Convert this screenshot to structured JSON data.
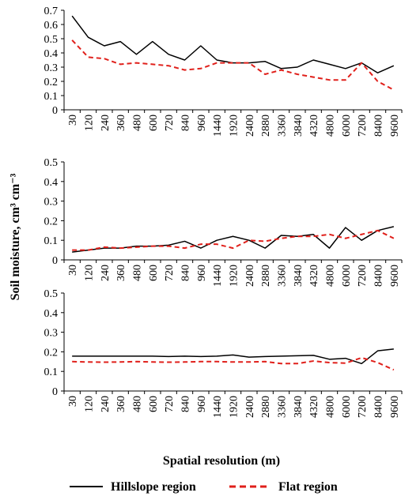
{
  "ylabel": "Soil moisture, cm³ cm⁻³",
  "xlabel": "Spatial resolution (m)",
  "legend": {
    "position": "bottom",
    "items": [
      {
        "name": "Hillslope region",
        "color": "#000000",
        "dash": "solid"
      },
      {
        "name": "Flat region",
        "color": "#e0201b",
        "dash": "dashed"
      }
    ]
  },
  "chart_data": [
    {
      "type": "line",
      "categories": [
        "30",
        "120",
        "240",
        "360",
        "480",
        "600",
        "720",
        "840",
        "960",
        "1440",
        "1920",
        "2400",
        "2880",
        "3360",
        "3840",
        "4320",
        "4800",
        "6000",
        "7200",
        "8400",
        "9600"
      ],
      "yticks": [
        "0",
        "0.1",
        "0.2",
        "0.3",
        "0.4",
        "0.5",
        "0.6",
        "0.7"
      ],
      "ylim": [
        0,
        0.7
      ],
      "grid": false,
      "series": [
        {
          "name": "Hillslope region",
          "color": "#000000",
          "dash": "solid",
          "values": [
            0.66,
            0.51,
            0.45,
            0.48,
            0.39,
            0.48,
            0.39,
            0.35,
            0.45,
            0.35,
            0.33,
            0.33,
            0.34,
            0.29,
            0.3,
            0.35,
            0.32,
            0.29,
            0.33,
            0.26,
            0.31
          ]
        },
        {
          "name": "Flat region",
          "color": "#e0201b",
          "dash": "dashed",
          "values": [
            0.49,
            0.37,
            0.36,
            0.32,
            0.33,
            0.32,
            0.31,
            0.28,
            0.29,
            0.33,
            0.33,
            0.33,
            0.25,
            0.28,
            0.25,
            0.23,
            0.21,
            0.21,
            0.33,
            0.2,
            0.14
          ]
        }
      ]
    },
    {
      "type": "line",
      "categories": [
        "30",
        "120",
        "240",
        "360",
        "480",
        "600",
        "720",
        "840",
        "960",
        "1440",
        "1920",
        "2400",
        "2880",
        "3360",
        "3840",
        "4320",
        "4800",
        "6000",
        "7200",
        "8400",
        "9600"
      ],
      "yticks": [
        "0",
        "0.1",
        "0.2",
        "0.3",
        "0.4",
        "0.5"
      ],
      "ylim": [
        0,
        0.5
      ],
      "grid": false,
      "series": [
        {
          "name": "Hillslope region",
          "color": "#000000",
          "dash": "solid",
          "values": [
            0.04,
            0.05,
            0.06,
            0.06,
            0.07,
            0.07,
            0.075,
            0.095,
            0.06,
            0.1,
            0.12,
            0.1,
            0.06,
            0.125,
            0.12,
            0.13,
            0.06,
            0.165,
            0.1,
            0.15,
            0.17
          ]
        },
        {
          "name": "Flat region",
          "color": "#e0201b",
          "dash": "dashed",
          "values": [
            0.05,
            0.05,
            0.065,
            0.06,
            0.065,
            0.07,
            0.07,
            0.06,
            0.08,
            0.08,
            0.06,
            0.1,
            0.095,
            0.11,
            0.12,
            0.12,
            0.13,
            0.11,
            0.13,
            0.15,
            0.11
          ]
        }
      ]
    },
    {
      "type": "line",
      "categories": [
        "30",
        "120",
        "240",
        "360",
        "480",
        "600",
        "720",
        "840",
        "960",
        "1440",
        "1920",
        "2400",
        "2880",
        "3360",
        "3840",
        "4320",
        "4800",
        "6000",
        "7200",
        "8400",
        "9600"
      ],
      "yticks": [
        "0",
        "0.1",
        "0.2",
        "0.3",
        "0.4",
        "0.5"
      ],
      "ylim": [
        0,
        0.5
      ],
      "grid": false,
      "series": [
        {
          "name": "Hillslope region",
          "color": "#000000",
          "dash": "solid",
          "values": [
            0.178,
            0.178,
            0.178,
            0.178,
            0.178,
            0.178,
            0.176,
            0.178,
            0.176,
            0.178,
            0.184,
            0.173,
            0.176,
            0.178,
            0.18,
            0.182,
            0.162,
            0.167,
            0.14,
            0.205,
            0.214
          ]
        },
        {
          "name": "Flat region",
          "color": "#e0201b",
          "dash": "dashed",
          "values": [
            0.15,
            0.148,
            0.147,
            0.148,
            0.15,
            0.148,
            0.147,
            0.148,
            0.15,
            0.15,
            0.148,
            0.148,
            0.15,
            0.14,
            0.14,
            0.153,
            0.145,
            0.142,
            0.17,
            0.145,
            0.108
          ]
        }
      ]
    }
  ]
}
